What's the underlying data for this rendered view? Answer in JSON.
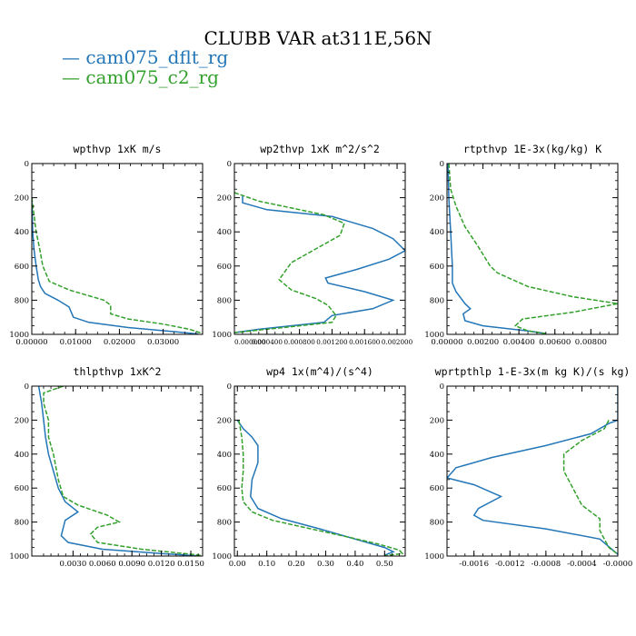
{
  "title": "CLUBB VAR at311E,56N",
  "legend": [
    {
      "label": "cam075_dflt_rg",
      "color": "#2376b7",
      "dash": "solid"
    },
    {
      "label": "cam075_c2_rg",
      "color": "#33a02c",
      "dash": "dashed"
    }
  ],
  "chart_data": [
    {
      "type": "line",
      "title": "wpthvp   1xK m/s",
      "xlim": [
        0,
        0.039
      ],
      "ylim": [
        1000,
        0
      ],
      "xticks": [
        "0.00000",
        "0.01000",
        "0.02000",
        "0.03000"
      ],
      "xtick_values": [
        0,
        0.01,
        0.02,
        0.03
      ],
      "yticks": [
        "0",
        "200",
        "400",
        "600",
        "800",
        "1000"
      ],
      "ytick_values": [
        0,
        200,
        400,
        600,
        800,
        1000
      ],
      "series": [
        {
          "name": "cam075_dflt_rg",
          "x": [
            0.0,
            0.0002,
            0.0005,
            0.001,
            0.0015,
            0.002,
            0.003,
            0.006,
            0.0085,
            0.0095,
            0.013,
            0.022,
            0.033,
            0.038
          ],
          "y": [
            200,
            400,
            500,
            600,
            680,
            720,
            760,
            800,
            840,
            900,
            930,
            960,
            985,
            998
          ]
        },
        {
          "name": "cam075_c2_rg",
          "x": [
            0.0,
            0.0005,
            0.001,
            0.0018,
            0.0025,
            0.004,
            0.0085,
            0.0165,
            0.018,
            0.018,
            0.022,
            0.03,
            0.036,
            0.039
          ],
          "y": [
            200,
            300,
            400,
            500,
            600,
            690,
            740,
            800,
            830,
            880,
            910,
            940,
            970,
            995
          ]
        }
      ]
    },
    {
      "type": "line",
      "title": "wp2thvp   1xK m^2/s^2",
      "xlim": [
        0,
        0.0021
      ],
      "ylim": [
        1000,
        0
      ],
      "xticks": [
        "0.000000",
        "0.000400",
        "0.000800",
        "0.001200",
        "0.001600",
        "0.002000"
      ],
      "xtick_values": [
        0,
        0.0004,
        0.0008,
        0.0012,
        0.0016,
        0.002
      ],
      "yticks": [
        "0",
        "200",
        "400",
        "600",
        "800",
        "1000"
      ],
      "ytick_values": [
        0,
        200,
        400,
        600,
        800,
        1000
      ],
      "series": [
        {
          "name": "cam075_dflt_rg",
          "x": [
            0.0001,
            0.0001,
            0.0004,
            0.0012,
            0.0017,
            0.00195,
            0.0021,
            0.0019,
            0.0015,
            0.00112,
            0.00115,
            0.0016,
            0.00195,
            0.0017,
            0.0012,
            0.0011,
            0.0003,
            0.0
          ],
          "y": [
            190,
            230,
            270,
            310,
            380,
            440,
            510,
            560,
            620,
            670,
            700,
            750,
            800,
            850,
            890,
            930,
            970,
            990
          ]
        },
        {
          "name": "cam075_c2_rg",
          "x": [
            0.0,
            0.0003,
            0.0007,
            0.0011,
            0.00135,
            0.0013,
            0.001,
            0.0007,
            0.00055,
            0.0007,
            0.001,
            0.00115,
            0.00125,
            0.0012,
            0.0006,
            0.0
          ],
          "y": [
            170,
            220,
            260,
            300,
            350,
            420,
            500,
            580,
            680,
            740,
            790,
            830,
            890,
            930,
            960,
            990
          ]
        }
      ]
    },
    {
      "type": "line",
      "title": "rtpthvp   1E-3x(kg/kg) K",
      "xlim": [
        0,
        0.0095
      ],
      "ylim": [
        1000,
        0
      ],
      "xticks": [
        "0.00000",
        "0.00200",
        "0.00400",
        "0.00600",
        "0.00800"
      ],
      "xtick_values": [
        0,
        0.002,
        0.004,
        0.006,
        0.008
      ],
      "yticks": [
        "0",
        "200",
        "400",
        "600",
        "800",
        "1000"
      ],
      "ytick_values": [
        0,
        200,
        400,
        600,
        800,
        1000
      ],
      "series": [
        {
          "name": "cam075_dflt_rg",
          "x": [
            5e-05,
            0.0001,
            0.0002,
            0.0003,
            0.0003,
            0.0005,
            0.001,
            0.0013,
            0.0009,
            0.001,
            0.002,
            0.0045,
            0.0055
          ],
          "y": [
            0,
            200,
            400,
            600,
            700,
            750,
            820,
            850,
            880,
            920,
            950,
            980,
            995
          ]
        },
        {
          "name": "cam075_c2_rg",
          "x": [
            0.0001,
            0.0002,
            0.0005,
            0.001,
            0.0017,
            0.0024,
            0.0028,
            0.0045,
            0.007,
            0.0095,
            0.007,
            0.0042,
            0.0038,
            0.0045,
            0.0055
          ],
          "y": [
            0,
            150,
            250,
            370,
            480,
            600,
            640,
            720,
            780,
            820,
            870,
            910,
            950,
            980,
            995
          ]
        }
      ]
    },
    {
      "type": "line",
      "title": "thlpthvp   1xK^2",
      "xlim": [
        -0.0012,
        0.0162
      ],
      "ylim": [
        1000,
        0
      ],
      "xticks": [
        "0.0030",
        "0.0060",
        "0.0090",
        "0.0120",
        "0.0150"
      ],
      "xtick_values": [
        0.003,
        0.006,
        0.009,
        0.012,
        0.015
      ],
      "yticks": [
        "0",
        "200",
        "400",
        "600",
        "800",
        "1000"
      ],
      "ytick_values": [
        0,
        200,
        400,
        600,
        800,
        1000
      ],
      "series": [
        {
          "name": "cam075_dflt_rg",
          "x": [
            -0.0005,
            -0.0002,
            0.0,
            0.0002,
            0.0005,
            0.001,
            0.0015,
            0.0022,
            0.0035,
            0.0022,
            0.0018,
            0.0025,
            0.006,
            0.012,
            0.016
          ],
          "y": [
            0,
            100,
            200,
            300,
            400,
            500,
            600,
            680,
            740,
            790,
            880,
            920,
            960,
            985,
            1000
          ]
        },
        {
          "name": "cam075_c2_rg",
          "x": [
            0.002,
            0.0,
            0.0,
            0.0005,
            0.0005,
            0.001,
            0.0015,
            0.002,
            0.0035,
            0.0065,
            0.0077,
            0.0055,
            0.0048,
            0.0055,
            0.01,
            0.016
          ],
          "y": [
            0,
            40,
            100,
            200,
            300,
            400,
            550,
            650,
            700,
            760,
            800,
            830,
            870,
            920,
            960,
            995
          ]
        }
      ]
    },
    {
      "type": "line",
      "title": "wp4   1x(m^4)/(s^4)",
      "xlim": [
        -0.01,
        0.57
      ],
      "ylim": [
        1000,
        0
      ],
      "xticks": [
        "0.00",
        "0.10",
        "0.20",
        "0.30",
        "0.40",
        "0.50"
      ],
      "xtick_values": [
        0,
        0.1,
        0.2,
        0.3,
        0.4,
        0.5
      ],
      "yticks": [
        "0",
        "200",
        "400",
        "600",
        "800",
        "1000"
      ],
      "ytick_values": [
        0,
        200,
        400,
        600,
        800,
        1000
      ],
      "series": [
        {
          "name": "cam075_dflt_rg",
          "x": [
            0.0,
            0.02,
            0.05,
            0.07,
            0.07,
            0.05,
            0.045,
            0.07,
            0.15,
            0.28,
            0.4,
            0.5,
            0.53,
            0.5
          ],
          "y": [
            200,
            250,
            300,
            350,
            450,
            550,
            650,
            720,
            780,
            840,
            900,
            950,
            975,
            995
          ]
        },
        {
          "name": "cam075_c2_rg",
          "x": [
            0.005,
            0.015,
            0.02,
            0.02,
            0.015,
            0.02,
            0.05,
            0.12,
            0.25,
            0.38,
            0.48,
            0.55,
            0.56,
            0.5
          ],
          "y": [
            200,
            300,
            400,
            500,
            600,
            680,
            740,
            790,
            840,
            890,
            930,
            965,
            985,
            998
          ]
        }
      ]
    },
    {
      "type": "line",
      "title": "wprtpthlp   1-E-3x(m kg K)/(s kg)",
      "xlim": [
        -0.0019,
        0.0
      ],
      "ylim": [
        1000,
        0
      ],
      "xticks": [
        "-0.0016",
        "-0.0012",
        "-0.0008",
        "-0.0004",
        "-0.0000"
      ],
      "xtick_values": [
        -0.0016,
        -0.0012,
        -0.0008,
        -0.0004,
        0.0
      ],
      "yticks": [
        "0",
        "200",
        "400",
        "600",
        "800",
        "1000"
      ],
      "ytick_values": [
        0,
        200,
        400,
        600,
        800,
        1000
      ],
      "series": [
        {
          "name": "cam075_dflt_rg",
          "x": [
            0.0,
            0.0,
            -0.0001,
            -0.0003,
            -0.0008,
            -0.0014,
            -0.0018,
            -0.0019,
            -0.0016,
            -0.0013,
            -0.00155,
            -0.0016,
            -0.0015,
            -0.0008,
            -0.0002,
            0.0
          ],
          "y": [
            0,
            200,
            220,
            280,
            350,
            420,
            480,
            540,
            580,
            650,
            720,
            760,
            790,
            840,
            900,
            990
          ]
        },
        {
          "name": "cam075_c2_rg",
          "x": [
            -0.0001,
            -0.00015,
            -0.0004,
            -0.0006,
            -0.0006,
            -0.0005,
            -0.0004,
            -0.0002,
            -0.0002,
            -0.0001,
            0.0
          ],
          "y": [
            200,
            250,
            320,
            400,
            500,
            600,
            700,
            780,
            850,
            950,
            990
          ]
        }
      ]
    }
  ]
}
